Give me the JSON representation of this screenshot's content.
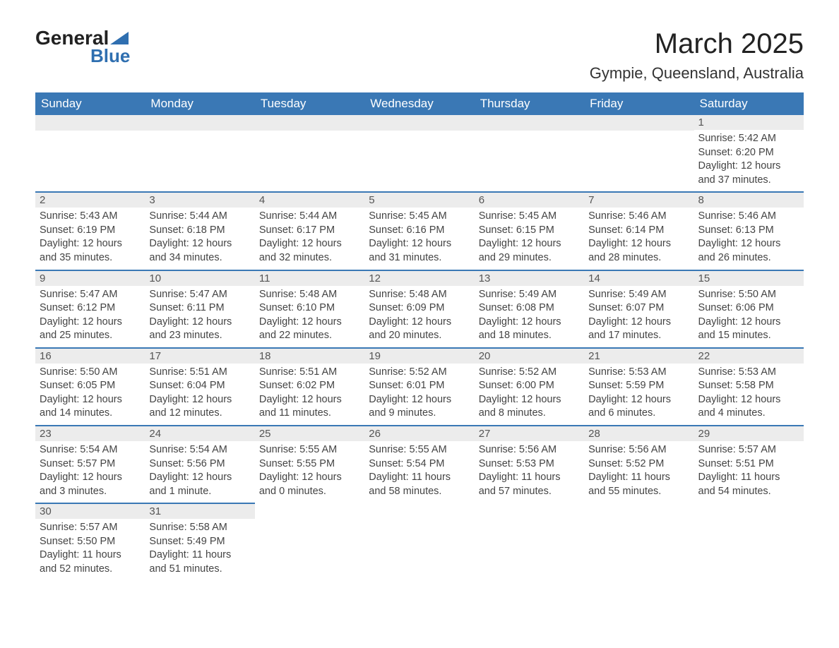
{
  "logo": {
    "line1": "General",
    "line2": "Blue"
  },
  "title": "March 2025",
  "subtitle": "Gympie, Queensland, Australia",
  "weekday_headers": [
    "Sunday",
    "Monday",
    "Tuesday",
    "Wednesday",
    "Thursday",
    "Friday",
    "Saturday"
  ],
  "calendar": {
    "type": "table",
    "header_bg": "#3a78b5",
    "header_fg": "#ffffff",
    "row_divider_color": "#3a78b5",
    "daynum_bg": "#ececec",
    "text_color": "#444444",
    "background_color": "#ffffff",
    "font_size_body": 14.5,
    "font_size_header": 17,
    "weeks": [
      [
        null,
        null,
        null,
        null,
        null,
        null,
        {
          "day": "1",
          "sunrise": "Sunrise: 5:42 AM",
          "sunset": "Sunset: 6:20 PM",
          "daylight": "Daylight: 12 hours and 37 minutes."
        }
      ],
      [
        {
          "day": "2",
          "sunrise": "Sunrise: 5:43 AM",
          "sunset": "Sunset: 6:19 PM",
          "daylight": "Daylight: 12 hours and 35 minutes."
        },
        {
          "day": "3",
          "sunrise": "Sunrise: 5:44 AM",
          "sunset": "Sunset: 6:18 PM",
          "daylight": "Daylight: 12 hours and 34 minutes."
        },
        {
          "day": "4",
          "sunrise": "Sunrise: 5:44 AM",
          "sunset": "Sunset: 6:17 PM",
          "daylight": "Daylight: 12 hours and 32 minutes."
        },
        {
          "day": "5",
          "sunrise": "Sunrise: 5:45 AM",
          "sunset": "Sunset: 6:16 PM",
          "daylight": "Daylight: 12 hours and 31 minutes."
        },
        {
          "day": "6",
          "sunrise": "Sunrise: 5:45 AM",
          "sunset": "Sunset: 6:15 PM",
          "daylight": "Daylight: 12 hours and 29 minutes."
        },
        {
          "day": "7",
          "sunrise": "Sunrise: 5:46 AM",
          "sunset": "Sunset: 6:14 PM",
          "daylight": "Daylight: 12 hours and 28 minutes."
        },
        {
          "day": "8",
          "sunrise": "Sunrise: 5:46 AM",
          "sunset": "Sunset: 6:13 PM",
          "daylight": "Daylight: 12 hours and 26 minutes."
        }
      ],
      [
        {
          "day": "9",
          "sunrise": "Sunrise: 5:47 AM",
          "sunset": "Sunset: 6:12 PM",
          "daylight": "Daylight: 12 hours and 25 minutes."
        },
        {
          "day": "10",
          "sunrise": "Sunrise: 5:47 AM",
          "sunset": "Sunset: 6:11 PM",
          "daylight": "Daylight: 12 hours and 23 minutes."
        },
        {
          "day": "11",
          "sunrise": "Sunrise: 5:48 AM",
          "sunset": "Sunset: 6:10 PM",
          "daylight": "Daylight: 12 hours and 22 minutes."
        },
        {
          "day": "12",
          "sunrise": "Sunrise: 5:48 AM",
          "sunset": "Sunset: 6:09 PM",
          "daylight": "Daylight: 12 hours and 20 minutes."
        },
        {
          "day": "13",
          "sunrise": "Sunrise: 5:49 AM",
          "sunset": "Sunset: 6:08 PM",
          "daylight": "Daylight: 12 hours and 18 minutes."
        },
        {
          "day": "14",
          "sunrise": "Sunrise: 5:49 AM",
          "sunset": "Sunset: 6:07 PM",
          "daylight": "Daylight: 12 hours and 17 minutes."
        },
        {
          "day": "15",
          "sunrise": "Sunrise: 5:50 AM",
          "sunset": "Sunset: 6:06 PM",
          "daylight": "Daylight: 12 hours and 15 minutes."
        }
      ],
      [
        {
          "day": "16",
          "sunrise": "Sunrise: 5:50 AM",
          "sunset": "Sunset: 6:05 PM",
          "daylight": "Daylight: 12 hours and 14 minutes."
        },
        {
          "day": "17",
          "sunrise": "Sunrise: 5:51 AM",
          "sunset": "Sunset: 6:04 PM",
          "daylight": "Daylight: 12 hours and 12 minutes."
        },
        {
          "day": "18",
          "sunrise": "Sunrise: 5:51 AM",
          "sunset": "Sunset: 6:02 PM",
          "daylight": "Daylight: 12 hours and 11 minutes."
        },
        {
          "day": "19",
          "sunrise": "Sunrise: 5:52 AM",
          "sunset": "Sunset: 6:01 PM",
          "daylight": "Daylight: 12 hours and 9 minutes."
        },
        {
          "day": "20",
          "sunrise": "Sunrise: 5:52 AM",
          "sunset": "Sunset: 6:00 PM",
          "daylight": "Daylight: 12 hours and 8 minutes."
        },
        {
          "day": "21",
          "sunrise": "Sunrise: 5:53 AM",
          "sunset": "Sunset: 5:59 PM",
          "daylight": "Daylight: 12 hours and 6 minutes."
        },
        {
          "day": "22",
          "sunrise": "Sunrise: 5:53 AM",
          "sunset": "Sunset: 5:58 PM",
          "daylight": "Daylight: 12 hours and 4 minutes."
        }
      ],
      [
        {
          "day": "23",
          "sunrise": "Sunrise: 5:54 AM",
          "sunset": "Sunset: 5:57 PM",
          "daylight": "Daylight: 12 hours and 3 minutes."
        },
        {
          "day": "24",
          "sunrise": "Sunrise: 5:54 AM",
          "sunset": "Sunset: 5:56 PM",
          "daylight": "Daylight: 12 hours and 1 minute."
        },
        {
          "day": "25",
          "sunrise": "Sunrise: 5:55 AM",
          "sunset": "Sunset: 5:55 PM",
          "daylight": "Daylight: 12 hours and 0 minutes."
        },
        {
          "day": "26",
          "sunrise": "Sunrise: 5:55 AM",
          "sunset": "Sunset: 5:54 PM",
          "daylight": "Daylight: 11 hours and 58 minutes."
        },
        {
          "day": "27",
          "sunrise": "Sunrise: 5:56 AM",
          "sunset": "Sunset: 5:53 PM",
          "daylight": "Daylight: 11 hours and 57 minutes."
        },
        {
          "day": "28",
          "sunrise": "Sunrise: 5:56 AM",
          "sunset": "Sunset: 5:52 PM",
          "daylight": "Daylight: 11 hours and 55 minutes."
        },
        {
          "day": "29",
          "sunrise": "Sunrise: 5:57 AM",
          "sunset": "Sunset: 5:51 PM",
          "daylight": "Daylight: 11 hours and 54 minutes."
        }
      ],
      [
        {
          "day": "30",
          "sunrise": "Sunrise: 5:57 AM",
          "sunset": "Sunset: 5:50 PM",
          "daylight": "Daylight: 11 hours and 52 minutes."
        },
        {
          "day": "31",
          "sunrise": "Sunrise: 5:58 AM",
          "sunset": "Sunset: 5:49 PM",
          "daylight": "Daylight: 11 hours and 51 minutes."
        },
        null,
        null,
        null,
        null,
        null
      ]
    ]
  }
}
